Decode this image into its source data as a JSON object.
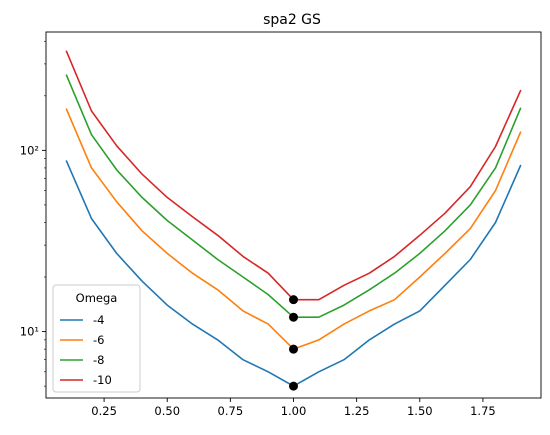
{
  "chart_data": {
    "type": "line",
    "title": "spa2 GS",
    "xlabel": "",
    "ylabel": "",
    "yscale": "log",
    "xlim": [
      0.02,
      1.98
    ],
    "ylim": [
      4.3,
      450
    ],
    "x_ticks": [
      0.25,
      0.5,
      0.75,
      1.0,
      1.25,
      1.5,
      1.75
    ],
    "x_tick_labels": [
      "0.25",
      "0.50",
      "0.75",
      "1.00",
      "1.25",
      "1.50",
      "1.75"
    ],
    "y_major_ticks": [
      10,
      100
    ],
    "y_tick_labels": [
      "10¹",
      "10²"
    ],
    "x": [
      0.1,
      0.2,
      0.3,
      0.4,
      0.5,
      0.6,
      0.7,
      0.8,
      0.9,
      1.0,
      1.1,
      1.2,
      1.3,
      1.4,
      1.5,
      1.6,
      1.7,
      1.8,
      1.9
    ],
    "series": [
      {
        "name": "-4",
        "color": "#1f77b4",
        "values": [
          88,
          42,
          27,
          19,
          14,
          11,
          9,
          7,
          6,
          5,
          6,
          7,
          9,
          11,
          13,
          18,
          25,
          40,
          83
        ]
      },
      {
        "name": "-6",
        "color": "#ff7f0e",
        "values": [
          170,
          80,
          52,
          36,
          27,
          21,
          17,
          13,
          11,
          8,
          9,
          11,
          13,
          15,
          20,
          27,
          37,
          60,
          127
        ]
      },
      {
        "name": "-8",
        "color": "#2ca02c",
        "values": [
          262,
          122,
          78,
          55,
          41,
          32,
          25,
          20,
          16,
          12,
          12,
          14,
          17,
          21,
          27,
          36,
          50,
          80,
          172
        ]
      },
      {
        "name": "-10",
        "color": "#d62728",
        "values": [
          355,
          165,
          106,
          74,
          55,
          43,
          34,
          26,
          21,
          15,
          15,
          18,
          21,
          26,
          34,
          45,
          63,
          105,
          215
        ]
      }
    ],
    "markers": {
      "x": 1.0,
      "values": [
        5,
        8,
        12,
        15
      ],
      "color": "#000000"
    },
    "legend": {
      "title": "Omega",
      "placement": "lower-left",
      "entries": [
        "-4",
        "-6",
        "-8",
        "-10"
      ]
    },
    "grid": false
  }
}
